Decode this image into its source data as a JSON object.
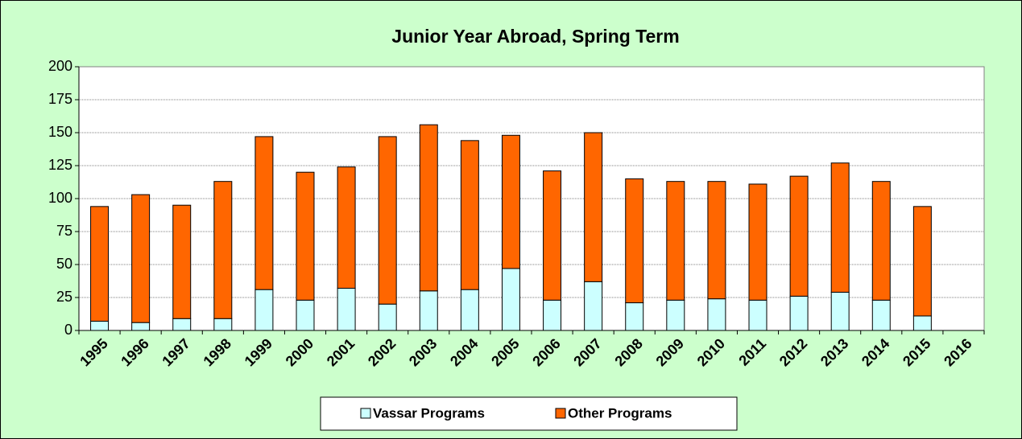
{
  "chart_data": {
    "type": "stacked-bar",
    "title": "Junior Year Abroad, Spring Term",
    "categories": [
      "1995",
      "1996",
      "1997",
      "1998",
      "1999",
      "2000",
      "2001",
      "2002",
      "2003",
      "2004",
      "2005",
      "2006",
      "2007",
      "2008",
      "2009",
      "2010",
      "2011",
      "2012",
      "2013",
      "2014",
      "2015",
      "2016"
    ],
    "series": [
      {
        "name": "Vassar Programs",
        "color": "#ccffff",
        "values": [
          7,
          6,
          9,
          9,
          31,
          23,
          32,
          20,
          30,
          31,
          47,
          23,
          37,
          21,
          23,
          24,
          23,
          26,
          29,
          23,
          11,
          null
        ]
      },
      {
        "name": "Other Programs",
        "color": "#ff6600",
        "values": [
          87,
          97,
          86,
          104,
          116,
          97,
          92,
          127,
          126,
          113,
          101,
          98,
          113,
          94,
          90,
          89,
          88,
          91,
          98,
          90,
          83,
          null
        ]
      }
    ],
    "ylim": [
      0,
      200
    ],
    "yticks": [
      0,
      25,
      50,
      75,
      100,
      125,
      150,
      175,
      200
    ],
    "grid": true,
    "legend": "bottom"
  }
}
